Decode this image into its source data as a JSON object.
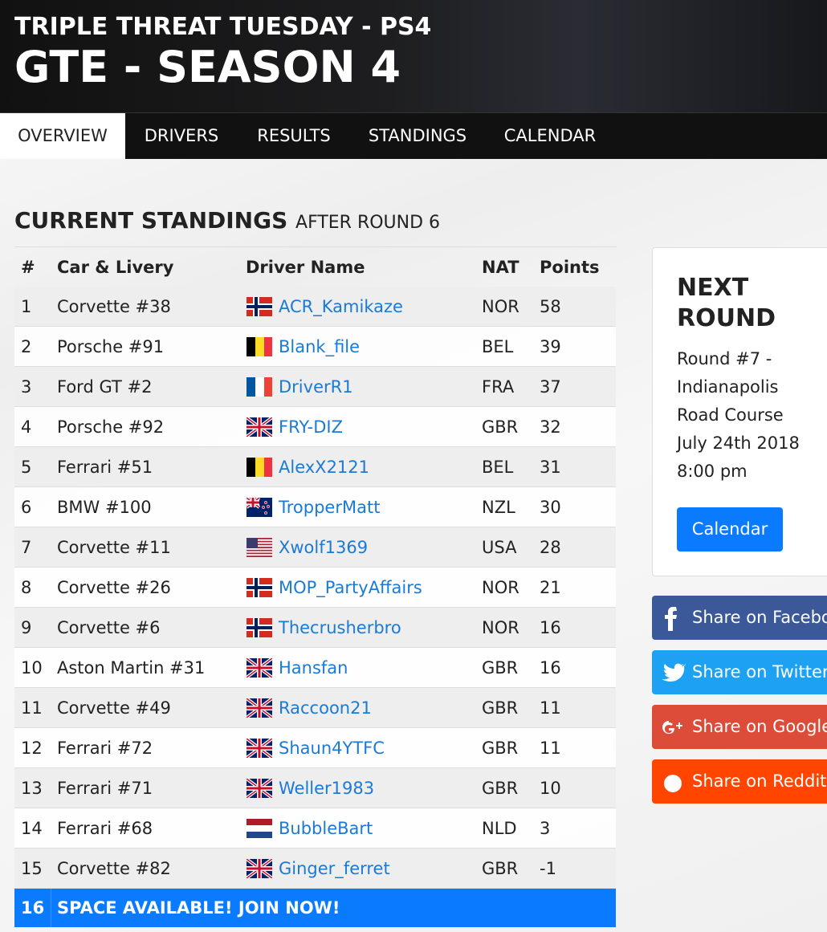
{
  "header": {
    "subtitle": "TRIPLE THREAT TUESDAY - PS4",
    "title": "GTE - SEASON 4"
  },
  "nav": [
    "OVERVIEW",
    "DRIVERS",
    "RESULTS",
    "STANDINGS",
    "CALENDAR"
  ],
  "standings": {
    "heading": "CURRENT STANDINGS",
    "subheading": "AFTER ROUND 6",
    "columns": [
      "#",
      "Car & Livery",
      "Driver Name",
      "NAT",
      "Points"
    ],
    "rows": [
      {
        "pos": 1,
        "car": "Corvette #38",
        "driver": "ACR_Kamikaze",
        "nat": "NOR",
        "points": 58
      },
      {
        "pos": 2,
        "car": "Porsche #91",
        "driver": "Blank_file",
        "nat": "BEL",
        "points": 39
      },
      {
        "pos": 3,
        "car": "Ford GT #2",
        "driver": "DriverR1",
        "nat": "FRA",
        "points": 37
      },
      {
        "pos": 4,
        "car": "Porsche #92",
        "driver": "FRY-DIZ",
        "nat": "GBR",
        "points": 32
      },
      {
        "pos": 5,
        "car": "Ferrari #51",
        "driver": "AlexX2121",
        "nat": "BEL",
        "points": 31
      },
      {
        "pos": 6,
        "car": "BMW #100",
        "driver": "TropperMatt",
        "nat": "NZL",
        "points": 30
      },
      {
        "pos": 7,
        "car": "Corvette #11",
        "driver": "Xwolf1369",
        "nat": "USA",
        "points": 28
      },
      {
        "pos": 8,
        "car": "Corvette #26",
        "driver": "MOP_PartyAffairs",
        "nat": "NOR",
        "points": 21
      },
      {
        "pos": 9,
        "car": "Corvette #6",
        "driver": "Thecrusherbro",
        "nat": "NOR",
        "points": 16
      },
      {
        "pos": 10,
        "car": "Aston Martin #31",
        "driver": "Hansfan",
        "nat": "GBR",
        "points": 16
      },
      {
        "pos": 11,
        "car": "Corvette #49",
        "driver": "Raccoon21",
        "nat": "GBR",
        "points": 11
      },
      {
        "pos": 12,
        "car": "Ferrari #72",
        "driver": "Shaun4YTFC",
        "nat": "GBR",
        "points": 11
      },
      {
        "pos": 13,
        "car": "Ferrari #71",
        "driver": "Weller1983",
        "nat": "GBR",
        "points": 10
      },
      {
        "pos": 14,
        "car": "Ferrari #68",
        "driver": "BubbleBart",
        "nat": "NLD",
        "points": 3
      },
      {
        "pos": 15,
        "car": "Corvette #82",
        "driver": "Ginger_ferret",
        "nat": "GBR",
        "points": -1
      }
    ],
    "open_slot": {
      "pos": 16,
      "text": "SPACE AVAILABLE! JOIN NOW!"
    }
  },
  "next_round": {
    "title": "NEXT ROUND",
    "lines": [
      "Round #7 -",
      "Indianapolis",
      "Road Course",
      "July 24th 2018",
      "8:00 pm"
    ],
    "button": "Calendar"
  },
  "share": [
    "Share on Facebook",
    "Share on Twitter",
    "Share on Google+",
    "Share on Reddit"
  ]
}
